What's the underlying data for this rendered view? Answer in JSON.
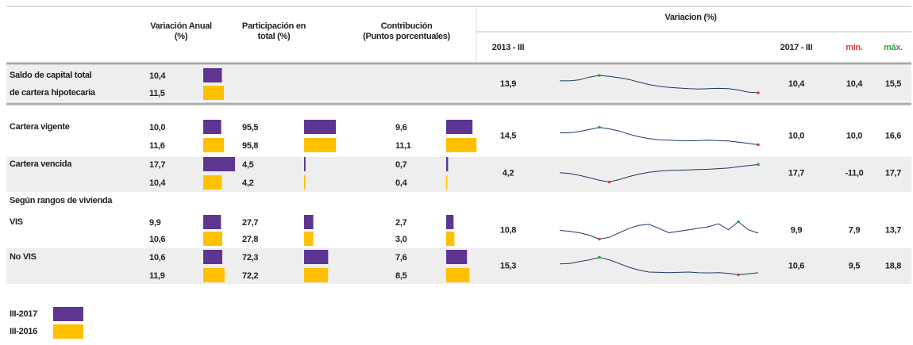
{
  "table": {
    "headers": {
      "variacion_anual": [
        "Variación Anual",
        "(%)"
      ],
      "participacion": [
        "Participación en",
        "total (%)"
      ],
      "contribucion": [
        "Contribución",
        "(Puntos porcentuales)"
      ],
      "variacion": "Variacion (%)",
      "start": "2013 - III",
      "end": "2017 - III",
      "min": "min.",
      "max": "máx."
    },
    "rows": [
      {
        "label": [
          "Saldo de capital total",
          "de cartera hipotecaria"
        ],
        "bold": true,
        "variacion_anual": [
          {
            "value": 10.4,
            "label": "10,4"
          },
          {
            "value": 11.5,
            "label": "11,5"
          }
        ],
        "start": {
          "value": 13.9,
          "label": "13,9"
        },
        "spark": [
          13.9,
          13.9,
          14.2,
          15.0,
          15.5,
          15.2,
          14.8,
          14.3,
          13.5,
          12.8,
          12.3,
          12.0,
          11.8,
          11.6,
          11.5,
          11.6,
          11.7,
          11.6,
          11.2,
          10.6,
          10.4
        ],
        "end": {
          "value": 10.4,
          "label": "10,4"
        },
        "min": {
          "value": 10.4,
          "label": "10,4"
        },
        "max": {
          "value": 15.5,
          "label": "15,5"
        }
      },
      {
        "label": [
          "Cartera vigente"
        ],
        "bold": false,
        "variacion_anual": [
          {
            "value": 10.0,
            "label": "10,0"
          },
          {
            "value": 11.6,
            "label": "11,6"
          }
        ],
        "participacion": [
          {
            "value": 95.5,
            "label": "95,5"
          },
          {
            "value": 95.8,
            "label": "95,8"
          }
        ],
        "contribucion": [
          {
            "value": 9.6,
            "label": "9,6"
          },
          {
            "value": 11.1,
            "label": "11,1"
          }
        ],
        "start": {
          "value": 14.5,
          "label": "14,5"
        },
        "spark": [
          14.5,
          14.5,
          15.0,
          15.8,
          16.6,
          16.0,
          15.2,
          14.0,
          13.0,
          12.3,
          11.9,
          11.7,
          11.6,
          11.5,
          11.6,
          11.7,
          11.6,
          11.4,
          11.0,
          10.5,
          10.0
        ],
        "end": {
          "value": 10.0,
          "label": "10,0"
        },
        "min": {
          "value": 10.0,
          "label": "10,0"
        },
        "max": {
          "value": 16.6,
          "label": "16,6"
        }
      },
      {
        "label": [
          "Cartera vencida"
        ],
        "bold": false,
        "variacion_anual": [
          {
            "value": 17.7,
            "label": "17,7"
          },
          {
            "value": 10.4,
            "label": "10,4"
          }
        ],
        "participacion": [
          {
            "value": 4.5,
            "label": "4,5"
          },
          {
            "value": 4.2,
            "label": "4,2"
          }
        ],
        "contribucion": [
          {
            "value": 0.7,
            "label": "0,7"
          },
          {
            "value": 0.4,
            "label": "0,4"
          }
        ],
        "start": {
          "value": 4.2,
          "label": "4,2"
        },
        "spark": [
          4.2,
          3.0,
          0,
          -4,
          -8,
          -11,
          -7,
          -2,
          2,
          5,
          7,
          8,
          8.5,
          9,
          9.5,
          10,
          11,
          12,
          14,
          16,
          17.7
        ],
        "end": {
          "value": 17.7,
          "label": "17,7"
        },
        "min": {
          "value": -11.0,
          "label": "-11,0"
        },
        "max": {
          "value": 17.7,
          "label": "17,7"
        }
      },
      {
        "label": [
          "VIS"
        ],
        "bold": false,
        "variacion_anual": [
          {
            "value": 9.9,
            "label": "9,9"
          },
          {
            "value": 10.6,
            "label": "10,6"
          }
        ],
        "participacion": [
          {
            "value": 27.7,
            "label": "27,7"
          },
          {
            "value": 27.8,
            "label": "27,8"
          }
        ],
        "contribucion": [
          {
            "value": 2.7,
            "label": "2,7"
          },
          {
            "value": 3.0,
            "label": "3,0"
          }
        ],
        "start": {
          "value": 10.8,
          "label": "10,8"
        },
        "spark": [
          10.8,
          10.5,
          10,
          9.2,
          7.9,
          8.5,
          10,
          11.5,
          12.5,
          12.8,
          11.5,
          10,
          10.5,
          11,
          11.5,
          12,
          13,
          11,
          13.7,
          11,
          9.9
        ],
        "end": {
          "value": 9.9,
          "label": "9,9"
        },
        "min": {
          "value": 7.9,
          "label": "7,9"
        },
        "max": {
          "value": 13.7,
          "label": "13,7"
        }
      },
      {
        "label": [
          "No VIS"
        ],
        "bold": false,
        "variacion_anual": [
          {
            "value": 10.6,
            "label": "10,6"
          },
          {
            "value": 11.9,
            "label": "11,9"
          }
        ],
        "participacion": [
          {
            "value": 72.3,
            "label": "72,3"
          },
          {
            "value": 72.2,
            "label": "72,2"
          }
        ],
        "contribucion": [
          {
            "value": 7.6,
            "label": "7,6"
          },
          {
            "value": 8.5,
            "label": "8,5"
          }
        ],
        "start": {
          "value": 15.3,
          "label": "15,3"
        },
        "spark": [
          15.3,
          15.5,
          16.5,
          17.5,
          18.8,
          17.5,
          15.5,
          13.5,
          12,
          11,
          10.8,
          10.7,
          10.8,
          11,
          10.6,
          10.5,
          10.7,
          10.3,
          9.5,
          10,
          10.6
        ],
        "end": {
          "value": 10.6,
          "label": "10,6"
        },
        "min": {
          "value": 9.5,
          "label": "9,5"
        },
        "max": {
          "value": 18.8,
          "label": "18,8"
        }
      }
    ],
    "section": "Según rangos de vivienda"
  },
  "legend": [
    {
      "label": "III-2017",
      "color": "#5e3591"
    },
    {
      "label": "III-2016",
      "color": "#ffc000"
    }
  ],
  "min_color": "#e53935",
  "max_color": "#2e9e44"
}
